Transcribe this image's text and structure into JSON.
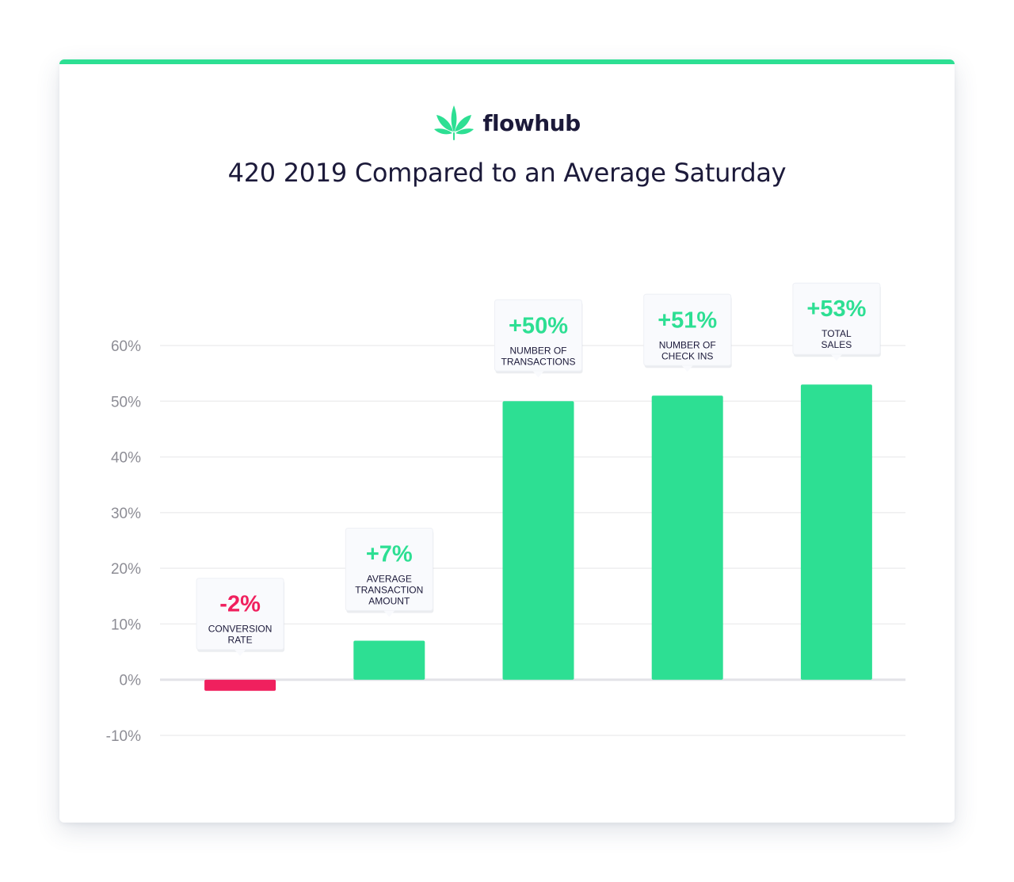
{
  "brand": {
    "name": "flowhub",
    "logo_icon": "cannabis-leaf-icon",
    "accent_color": "#2ddf93"
  },
  "chart_data": {
    "type": "bar",
    "title": "420 2019 Compared to an Average Saturday",
    "xlabel": "",
    "ylabel": "",
    "ylim": [
      -10,
      60
    ],
    "yticks": [
      60,
      50,
      40,
      30,
      20,
      10,
      0,
      -10
    ],
    "ytick_labels": [
      "60%",
      "50%",
      "40%",
      "30%",
      "20%",
      "10%",
      "0%",
      "-10%"
    ],
    "grid": true,
    "positive_color": "#2ddf93",
    "negative_color": "#f0205e",
    "bars": [
      {
        "category": "Conversion Rate",
        "value": -2,
        "value_label": "-2%",
        "label_lines": [
          "CONVERSION",
          "RATE"
        ]
      },
      {
        "category": "Average Transaction Amount",
        "value": 7,
        "value_label": "+7%",
        "label_lines": [
          "AVERAGE",
          "TRANSACTION",
          "AMOUNT"
        ]
      },
      {
        "category": "Number of Transactions",
        "value": 50,
        "value_label": "+50%",
        "label_lines": [
          "NUMBER OF",
          "TRANSACTIONS"
        ]
      },
      {
        "category": "Number of Check Ins",
        "value": 51,
        "value_label": "+51%",
        "label_lines": [
          "NUMBER OF",
          "CHECK INS"
        ]
      },
      {
        "category": "Total Sales",
        "value": 53,
        "value_label": "+53%",
        "label_lines": [
          "TOTAL",
          "SALES"
        ]
      }
    ]
  }
}
